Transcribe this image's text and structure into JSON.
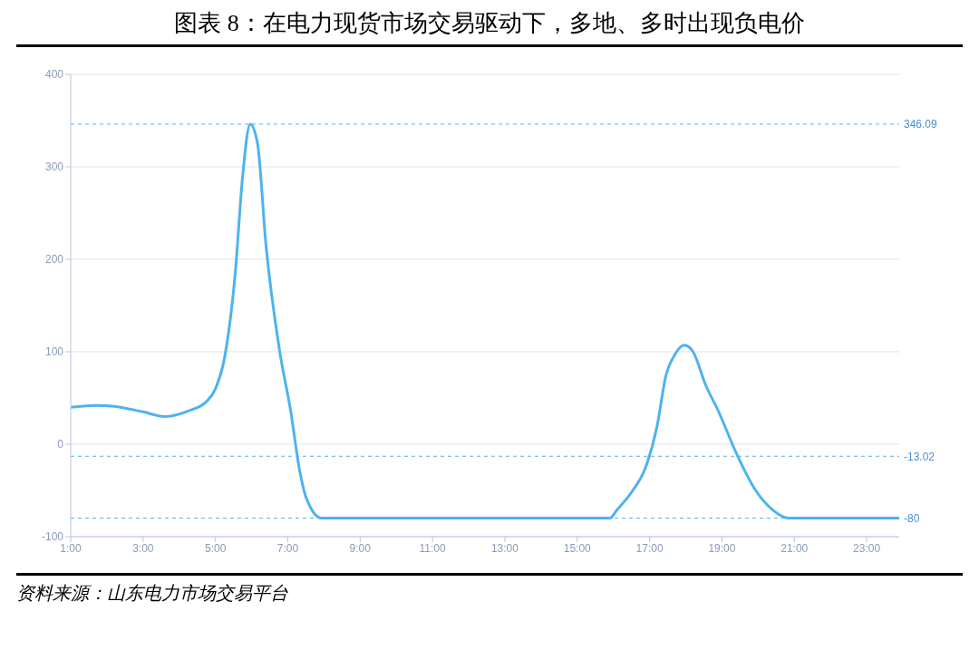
{
  "chart_data": {
    "type": "line",
    "title": "图表 8：在电力现货市场交易驱动下，多地、多时出现负电价",
    "x": [
      1,
      1.7,
      2.2,
      3,
      3.6,
      4.25,
      4.75,
      5,
      5.25,
      5.55,
      5.75,
      5.96,
      6.16,
      6.4,
      6.77,
      7.08,
      7.33,
      7.5,
      7.94,
      15.9,
      16.1,
      16.5,
      16.9,
      17.2,
      17.45,
      17.7,
      17.96,
      18.2,
      18.55,
      18.9,
      19.4,
      19.9,
      20.4,
      20.85,
      23.9
    ],
    "series": [
      {
        "color": "#4db3f0",
        "values": [
          40,
          42,
          41,
          35,
          30,
          36,
          46,
          60,
          93,
          186,
          289,
          346.09,
          326,
          214,
          102,
          36,
          -29,
          -57,
          -80,
          -80,
          -71,
          -52,
          -24,
          18,
          74,
          97,
          107,
          100,
          64,
          36,
          -10,
          -48,
          -71,
          -80,
          -80
        ]
      }
    ],
    "xlim": [
      1,
      23.9
    ],
    "xticks": [
      {
        "value": 1,
        "label": "1:00"
      },
      {
        "value": 3,
        "label": "3:00"
      },
      {
        "value": 5,
        "label": "5:00"
      },
      {
        "value": 7,
        "label": "7:00"
      },
      {
        "value": 9,
        "label": "9:00"
      },
      {
        "value": 11,
        "label": "11:00"
      },
      {
        "value": 13,
        "label": "13:00"
      },
      {
        "value": 15,
        "label": "15:00"
      },
      {
        "value": 17,
        "label": "17:00"
      },
      {
        "value": 19,
        "label": "19:00"
      },
      {
        "value": 21,
        "label": "21:00"
      },
      {
        "value": 23,
        "label": "23:00"
      }
    ],
    "ylim": [
      -100,
      400
    ],
    "yticks": [
      -100,
      0,
      100,
      200,
      300,
      400
    ],
    "grid": "y",
    "marker": "none",
    "line_style": "solid",
    "ref_lines": [
      {
        "axis": "y",
        "value": 346.09,
        "label": "346.09",
        "color": "#4db3f0",
        "line_style": "dashed"
      },
      {
        "axis": "y",
        "value": -13.02,
        "label": "-13.02",
        "color": "#4db3f0",
        "line_style": "dashed"
      },
      {
        "axis": "y",
        "value": -80,
        "label": "-80",
        "color": "#4db3f0",
        "line_style": "dashed"
      }
    ],
    "annotations": [
      "资料来源：山东电力市场交易平台"
    ]
  }
}
